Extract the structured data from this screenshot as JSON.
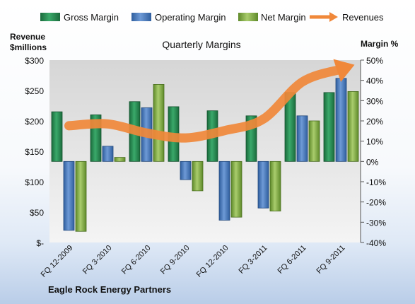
{
  "chart_data": {
    "type": "bar",
    "title": "Quarterly Margins",
    "company": "Eagle Rock Energy Partners",
    "left_axis_label_line1": "Revenue",
    "left_axis_label_line2": "$millions",
    "right_axis_label": "Margin %",
    "categories": [
      "FQ 12-2009",
      "FQ 3-2010",
      "FQ 6-2010",
      "FQ 9-2010",
      "FQ 12-2010",
      "FQ 3-2011",
      "FQ 6-2011",
      "FQ 9-2011"
    ],
    "left_ticks": [
      "$300",
      "$250",
      "$200",
      "$150",
      "$100",
      "$50",
      "$-"
    ],
    "right_ticks": [
      "50%",
      "40%",
      "30%",
      "20%",
      "10%",
      "0%",
      "-10%",
      "-20%",
      "-30%",
      "-40%"
    ],
    "left_ylim": [
      0,
      300
    ],
    "right_ylim": [
      -40,
      50
    ],
    "grid": false,
    "legend_position": "top",
    "series": [
      {
        "name": "Gross Margin",
        "axis": "right",
        "values": [
          24.5,
          23,
          29.5,
          27,
          25,
          22.5,
          34,
          34
        ],
        "color": "#2e8b57"
      },
      {
        "name": "Operating Margin",
        "axis": "right",
        "values": [
          -34,
          7.5,
          26.5,
          -9,
          -29,
          -23,
          22.5,
          41
        ],
        "color": "#4f7ec0"
      },
      {
        "name": "Net Margin",
        "axis": "right",
        "values": [
          -34.5,
          2,
          38,
          -14.5,
          -27.5,
          -24.5,
          20,
          34.5
        ],
        "color": "#8db24a"
      },
      {
        "name": "Revenues",
        "axis": "left",
        "type": "line",
        "values": [
          192,
          195,
          180,
          172,
          184,
          203,
          264,
          285
        ],
        "color": "#f0883a"
      }
    ]
  }
}
